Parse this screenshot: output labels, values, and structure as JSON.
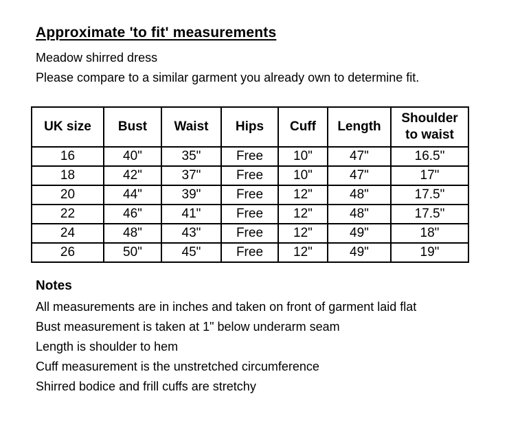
{
  "header": {
    "title": "Approximate 'to fit' measurements",
    "product": "Meadow shirred dress",
    "advice": "Please compare to a similar garment you already own to determine fit."
  },
  "table": {
    "columns": [
      "UK size",
      "Bust",
      "Waist",
      "Hips",
      "Cuff",
      "Length",
      "Shoulder to waist"
    ],
    "rows": [
      [
        "16",
        "40\"",
        "35\"",
        "Free",
        "10\"",
        "47\"",
        "16.5\""
      ],
      [
        "18",
        "42\"",
        "37\"",
        "Free",
        "10\"",
        "47\"",
        "17\""
      ],
      [
        "20",
        "44\"",
        "39\"",
        "Free",
        "12\"",
        "48\"",
        "17.5\""
      ],
      [
        "22",
        "46\"",
        "41\"",
        "Free",
        "12\"",
        "48\"",
        "17.5\""
      ],
      [
        "24",
        "48\"",
        "43\"",
        "Free",
        "12\"",
        "49\"",
        "18\""
      ],
      [
        "26",
        "50\"",
        "45\"",
        "Free",
        "12\"",
        "49\"",
        "19\""
      ]
    ]
  },
  "notes": {
    "title": "Notes",
    "items": [
      "All measurements are in inches and taken on front of garment laid flat",
      "Bust measurement is taken at 1\" below underarm seam",
      "Length is shoulder to hem",
      "Cuff measurement is the unstretched circumference",
      "Shirred bodice and frill cuffs are stretchy"
    ]
  },
  "colors": {
    "text": "#000000",
    "background": "#ffffff",
    "table_border": "#000000"
  }
}
